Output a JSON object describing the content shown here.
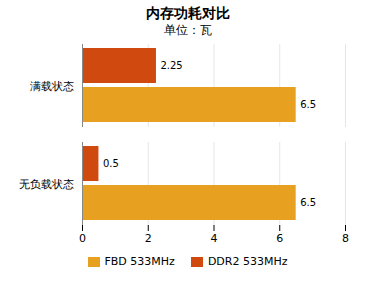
{
  "chart_data": {
    "type": "bar",
    "orientation": "horizontal",
    "title": "内存功耗对比",
    "subtitle": "单位：瓦",
    "categories": [
      "满载状态",
      "无负载状态"
    ],
    "series": [
      {
        "name": "FBD 533MHz",
        "values": [
          6.5,
          6.5
        ],
        "color": "#E8A020"
      },
      {
        "name": "DDR2 533MHz",
        "values": [
          2.25,
          0.5
        ],
        "color": "#D04A10"
      }
    ],
    "xlim": [
      0,
      8
    ],
    "xticks": [
      0,
      2,
      4,
      6,
      8
    ],
    "grid": true,
    "legend": "bottom",
    "data_labels": true
  }
}
